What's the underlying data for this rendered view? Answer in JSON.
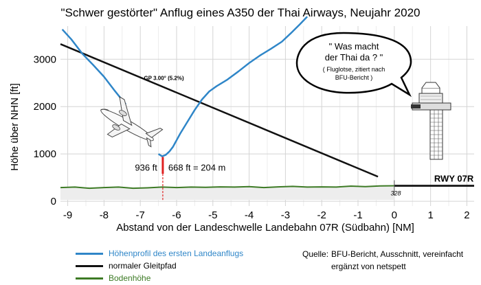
{
  "chart_data": {
    "type": "line",
    "title": "\"Schwer gestörter\" Anflug eines A350 der Thai Airways, Neujahr 2020",
    "xlabel": "Abstand von der Landeschwelle Landebahn 07R (Südbahn)  [NM]",
    "ylabel": "Höhe über NHN  [ft]",
    "xlim": [
      -9.2,
      2.2
    ],
    "ylim": [
      -100,
      3700
    ],
    "x_ticks": [
      -9,
      -8,
      -7,
      -6,
      -5,
      -4,
      -3,
      -2,
      -1,
      0,
      1,
      2
    ],
    "x_tick_labels": [
      "-9",
      "-8",
      "-7",
      "-6",
      "-5",
      "-4",
      "-3",
      "-2",
      "-1",
      "0",
      "1",
      "2"
    ],
    "y_ticks": [
      0,
      1000,
      2000,
      3000
    ],
    "y_tick_labels": [
      "0",
      "1000",
      "2000",
      "3000"
    ],
    "grid": true,
    "series": [
      {
        "name": "Höhenprofil des ersten Landeanflugs",
        "color": "#2f86c8",
        "segments": [
          {
            "x": [
              -9.15,
              -8.9,
              -8.6,
              -8.3,
              -8.0,
              -7.7,
              -7.5,
              -7.4
            ],
            "y": [
              3630,
              3420,
              3120,
              2880,
              2630,
              2330,
              2140,
              2050
            ]
          },
          {
            "x": [
              -6.5,
              -6.4,
              -6.3,
              -6.2,
              -6.1,
              -6.0,
              -5.9,
              -5.7,
              -5.5,
              -5.3,
              -5.1,
              -4.9,
              -4.6,
              -4.3,
              -4.0,
              -3.7,
              -3.4,
              -3.1,
              -2.85,
              -2.6,
              -2.4
            ],
            "y": [
              1000,
              950,
              980,
              1050,
              1150,
              1290,
              1430,
              1680,
              1930,
              2150,
              2320,
              2430,
              2570,
              2740,
              2920,
              3080,
              3220,
              3370,
              3550,
              3740,
              3900
            ]
          }
        ]
      },
      {
        "name": "normaler Gleitpfad",
        "color": "#111111",
        "x": [
          -9.2,
          -0.45
        ],
        "y": [
          3320,
          520
        ]
      },
      {
        "name": "Bodenhöhe",
        "color": "#3c7a24",
        "x": [
          -9.2,
          -8.8,
          -8.4,
          -8.0,
          -7.6,
          -7.2,
          -6.8,
          -6.4,
          -6.0,
          -5.6,
          -5.2,
          -4.8,
          -4.4,
          -4.0,
          -3.6,
          -3.2,
          -2.8,
          -2.4,
          -2.0,
          -1.6,
          -1.2,
          -0.8,
          -0.4,
          0.0
        ],
        "y": [
          290,
          300,
          275,
          290,
          300,
          275,
          285,
          300,
          290,
          300,
          295,
          305,
          300,
          310,
          290,
          305,
          315,
          300,
          305,
          300,
          320,
          310,
          325,
          328
        ]
      }
    ],
    "runway": {
      "label": "RWY 07R",
      "elevation_label": "328",
      "x_start": 0.0,
      "x_end": 2.2,
      "elevation": 328
    },
    "annotations": {
      "glidepath_label": "GP 3.00° (5.2%)",
      "min_altitude_label": "936 ft",
      "agl_label": "668 ft  =  204 m",
      "min_x": -6.38,
      "min_altitude": 936,
      "ground_at_min": 268,
      "speech_line1": "\" Was macht",
      "speech_line2": "der Thai da ? \"",
      "speech_line3": "( Fluglotse, zitiert nach",
      "speech_line4": "BFU-Bericht )"
    }
  },
  "legend": {
    "items": [
      {
        "label": "Höhenprofil des ersten Landeanflugs",
        "color": "#2f86c8"
      },
      {
        "label": "normaler Gleitpfad",
        "color": "#111111"
      },
      {
        "label": "Bodenhöhe",
        "color": "#3c7a24"
      }
    ]
  },
  "source": {
    "label": "Quelle:",
    "line1": "BFU-Bericht, Ausschnitt, vereinfacht",
    "line2": "ergänzt von netspett"
  }
}
